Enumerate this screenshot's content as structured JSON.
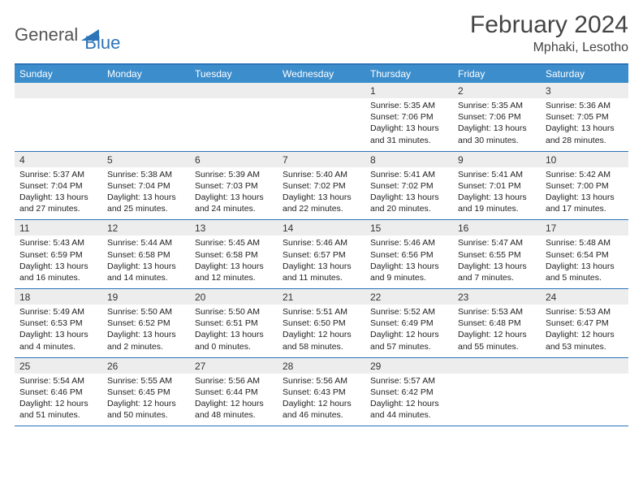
{
  "logo": {
    "part1": "General",
    "part2": "Blue"
  },
  "title": "February 2024",
  "location": "Mphaki, Lesotho",
  "colors": {
    "header_bar": "#3c8dcc",
    "border": "#2c74b8",
    "daynum_bg": "#ededed",
    "text": "#222222"
  },
  "days_of_week": [
    "Sunday",
    "Monday",
    "Tuesday",
    "Wednesday",
    "Thursday",
    "Friday",
    "Saturday"
  ],
  "weeks": [
    [
      {
        "n": "",
        "sr": "",
        "ss": "",
        "dl": ""
      },
      {
        "n": "",
        "sr": "",
        "ss": "",
        "dl": ""
      },
      {
        "n": "",
        "sr": "",
        "ss": "",
        "dl": ""
      },
      {
        "n": "",
        "sr": "",
        "ss": "",
        "dl": ""
      },
      {
        "n": "1",
        "sr": "Sunrise: 5:35 AM",
        "ss": "Sunset: 7:06 PM",
        "dl": "Daylight: 13 hours and 31 minutes."
      },
      {
        "n": "2",
        "sr": "Sunrise: 5:35 AM",
        "ss": "Sunset: 7:06 PM",
        "dl": "Daylight: 13 hours and 30 minutes."
      },
      {
        "n": "3",
        "sr": "Sunrise: 5:36 AM",
        "ss": "Sunset: 7:05 PM",
        "dl": "Daylight: 13 hours and 28 minutes."
      }
    ],
    [
      {
        "n": "4",
        "sr": "Sunrise: 5:37 AM",
        "ss": "Sunset: 7:04 PM",
        "dl": "Daylight: 13 hours and 27 minutes."
      },
      {
        "n": "5",
        "sr": "Sunrise: 5:38 AM",
        "ss": "Sunset: 7:04 PM",
        "dl": "Daylight: 13 hours and 25 minutes."
      },
      {
        "n": "6",
        "sr": "Sunrise: 5:39 AM",
        "ss": "Sunset: 7:03 PM",
        "dl": "Daylight: 13 hours and 24 minutes."
      },
      {
        "n": "7",
        "sr": "Sunrise: 5:40 AM",
        "ss": "Sunset: 7:02 PM",
        "dl": "Daylight: 13 hours and 22 minutes."
      },
      {
        "n": "8",
        "sr": "Sunrise: 5:41 AM",
        "ss": "Sunset: 7:02 PM",
        "dl": "Daylight: 13 hours and 20 minutes."
      },
      {
        "n": "9",
        "sr": "Sunrise: 5:41 AM",
        "ss": "Sunset: 7:01 PM",
        "dl": "Daylight: 13 hours and 19 minutes."
      },
      {
        "n": "10",
        "sr": "Sunrise: 5:42 AM",
        "ss": "Sunset: 7:00 PM",
        "dl": "Daylight: 13 hours and 17 minutes."
      }
    ],
    [
      {
        "n": "11",
        "sr": "Sunrise: 5:43 AM",
        "ss": "Sunset: 6:59 PM",
        "dl": "Daylight: 13 hours and 16 minutes."
      },
      {
        "n": "12",
        "sr": "Sunrise: 5:44 AM",
        "ss": "Sunset: 6:58 PM",
        "dl": "Daylight: 13 hours and 14 minutes."
      },
      {
        "n": "13",
        "sr": "Sunrise: 5:45 AM",
        "ss": "Sunset: 6:58 PM",
        "dl": "Daylight: 13 hours and 12 minutes."
      },
      {
        "n": "14",
        "sr": "Sunrise: 5:46 AM",
        "ss": "Sunset: 6:57 PM",
        "dl": "Daylight: 13 hours and 11 minutes."
      },
      {
        "n": "15",
        "sr": "Sunrise: 5:46 AM",
        "ss": "Sunset: 6:56 PM",
        "dl": "Daylight: 13 hours and 9 minutes."
      },
      {
        "n": "16",
        "sr": "Sunrise: 5:47 AM",
        "ss": "Sunset: 6:55 PM",
        "dl": "Daylight: 13 hours and 7 minutes."
      },
      {
        "n": "17",
        "sr": "Sunrise: 5:48 AM",
        "ss": "Sunset: 6:54 PM",
        "dl": "Daylight: 13 hours and 5 minutes."
      }
    ],
    [
      {
        "n": "18",
        "sr": "Sunrise: 5:49 AM",
        "ss": "Sunset: 6:53 PM",
        "dl": "Daylight: 13 hours and 4 minutes."
      },
      {
        "n": "19",
        "sr": "Sunrise: 5:50 AM",
        "ss": "Sunset: 6:52 PM",
        "dl": "Daylight: 13 hours and 2 minutes."
      },
      {
        "n": "20",
        "sr": "Sunrise: 5:50 AM",
        "ss": "Sunset: 6:51 PM",
        "dl": "Daylight: 13 hours and 0 minutes."
      },
      {
        "n": "21",
        "sr": "Sunrise: 5:51 AM",
        "ss": "Sunset: 6:50 PM",
        "dl": "Daylight: 12 hours and 58 minutes."
      },
      {
        "n": "22",
        "sr": "Sunrise: 5:52 AM",
        "ss": "Sunset: 6:49 PM",
        "dl": "Daylight: 12 hours and 57 minutes."
      },
      {
        "n": "23",
        "sr": "Sunrise: 5:53 AM",
        "ss": "Sunset: 6:48 PM",
        "dl": "Daylight: 12 hours and 55 minutes."
      },
      {
        "n": "24",
        "sr": "Sunrise: 5:53 AM",
        "ss": "Sunset: 6:47 PM",
        "dl": "Daylight: 12 hours and 53 minutes."
      }
    ],
    [
      {
        "n": "25",
        "sr": "Sunrise: 5:54 AM",
        "ss": "Sunset: 6:46 PM",
        "dl": "Daylight: 12 hours and 51 minutes."
      },
      {
        "n": "26",
        "sr": "Sunrise: 5:55 AM",
        "ss": "Sunset: 6:45 PM",
        "dl": "Daylight: 12 hours and 50 minutes."
      },
      {
        "n": "27",
        "sr": "Sunrise: 5:56 AM",
        "ss": "Sunset: 6:44 PM",
        "dl": "Daylight: 12 hours and 48 minutes."
      },
      {
        "n": "28",
        "sr": "Sunrise: 5:56 AM",
        "ss": "Sunset: 6:43 PM",
        "dl": "Daylight: 12 hours and 46 minutes."
      },
      {
        "n": "29",
        "sr": "Sunrise: 5:57 AM",
        "ss": "Sunset: 6:42 PM",
        "dl": "Daylight: 12 hours and 44 minutes."
      },
      {
        "n": "",
        "sr": "",
        "ss": "",
        "dl": ""
      },
      {
        "n": "",
        "sr": "",
        "ss": "",
        "dl": ""
      }
    ]
  ]
}
